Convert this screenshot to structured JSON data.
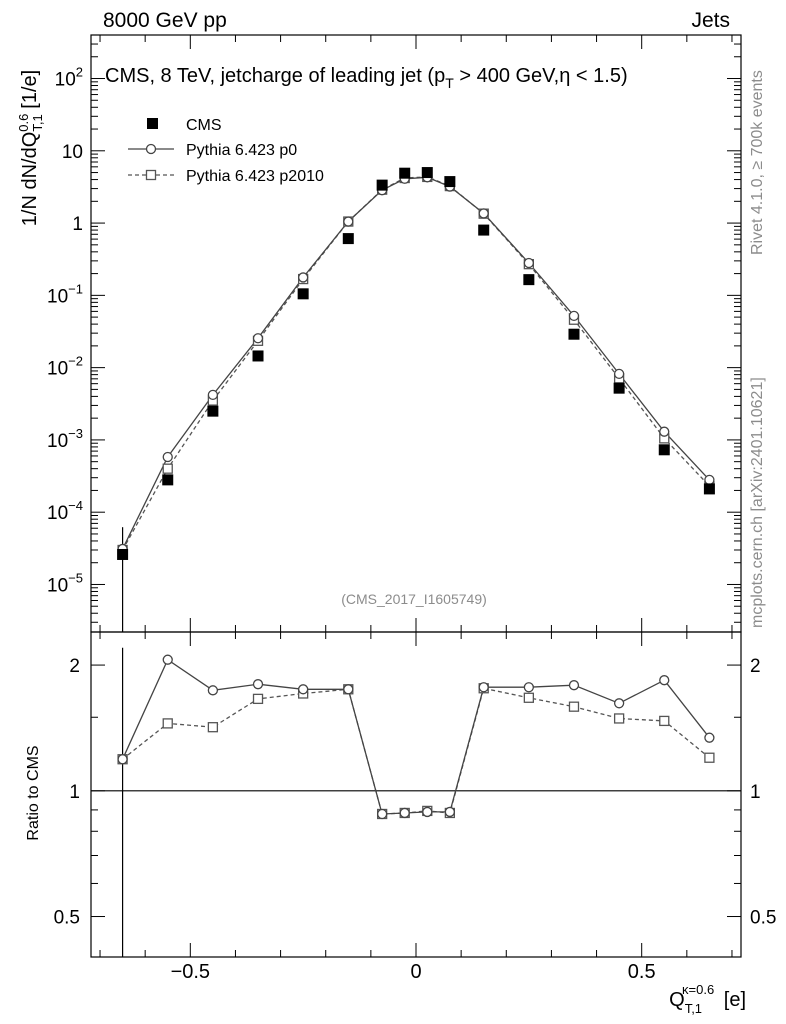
{
  "header": {
    "energy_label": "8000 GeV pp",
    "process_label": "Jets",
    "title": "CMS, 8 TeV, jetcharge of leading jet (p_T > 400 GeV,η < 1.5)",
    "analysis_id": "(CMS_2017_I1605749)",
    "side_label_top": "Rivet 4.1.0, ≥ 700k events",
    "side_label_bottom": "mcplots.cern.ch [arXiv:2401.10621]"
  },
  "axes": {
    "top_ylabel": "1/N dN/dQ^{0.6}_{T,1} [1/e]",
    "bottom_ylabel": "Ratio to CMS",
    "xlabel": "Q_{T,1}^{κ=0.6} [e]"
  },
  "chart_data": [
    {
      "type": "scatter",
      "panel": "main",
      "yscale": "log",
      "xlim": [
        -0.72,
        0.72
      ],
      "ylim": [
        2.2e-06,
        400
      ],
      "x": [
        -0.65,
        -0.55,
        -0.45,
        -0.35,
        -0.25,
        -0.15,
        -0.075,
        -0.025,
        0.025,
        0.075,
        0.15,
        0.25,
        0.35,
        0.45,
        0.55,
        0.65
      ],
      "xtick_labels": [
        "−0.5",
        "0",
        "0.5"
      ],
      "ytick_labels": [
        "10^{-5}",
        "10^{-4}",
        "10^{-3}",
        "10^{-2}",
        "10^{-1}",
        "1",
        "10",
        "10^{2}"
      ],
      "legend_position": "top-left",
      "series": [
        {
          "name": "CMS",
          "style": "filled-square",
          "color": "#000000",
          "values": [
            2.6e-05,
            0.00028,
            0.0025,
            0.0145,
            0.105,
            0.61,
            3.35,
            4.9,
            5.0,
            3.75,
            0.8,
            0.165,
            0.029,
            0.0052,
            0.00073,
            0.00021
          ]
        },
        {
          "name": "Pythia 6.423 p0",
          "style": "solid-line-open-circle",
          "color": "#444444",
          "values": [
            3.1e-05,
            0.00058,
            0.0042,
            0.0255,
            0.177,
            1.05,
            2.85,
            4.1,
            4.3,
            3.2,
            1.36,
            0.28,
            0.052,
            0.0082,
            0.0013,
            0.00028
          ]
        },
        {
          "name": "Pythia 6.423 p2010",
          "style": "dashed-line-open-square",
          "color": "#555555",
          "values": [
            3e-05,
            0.0004,
            0.0035,
            0.0235,
            0.168,
            1.05,
            2.9,
            4.2,
            4.35,
            3.25,
            1.35,
            0.27,
            0.046,
            0.0071,
            0.00105,
            0.00023
          ]
        }
      ]
    },
    {
      "type": "scatter",
      "panel": "ratio",
      "yscale": "log",
      "xlim": [
        -0.72,
        0.72
      ],
      "ylim": [
        0.4,
        2.4
      ],
      "x": [
        -0.65,
        -0.55,
        -0.45,
        -0.35,
        -0.25,
        -0.15,
        -0.075,
        -0.025,
        0.025,
        0.075,
        0.15,
        0.25,
        0.35,
        0.45,
        0.55,
        0.65
      ],
      "ytick_labels": [
        "0.5",
        "1",
        "2"
      ],
      "reference_line": 1,
      "series": [
        {
          "name": "Pythia 6.423 p0",
          "style": "solid-line-open-circle",
          "values": [
            1.19,
            2.06,
            1.74,
            1.8,
            1.75,
            1.75,
            0.88,
            0.885,
            0.89,
            0.89,
            1.77,
            1.77,
            1.79,
            1.62,
            1.84,
            1.34
          ]
        },
        {
          "name": "Pythia 6.423 p2010",
          "style": "dashed-line-open-square",
          "values": [
            1.19,
            1.45,
            1.42,
            1.66,
            1.71,
            1.75,
            0.88,
            0.885,
            0.895,
            0.885,
            1.76,
            1.67,
            1.59,
            1.49,
            1.47,
            1.2
          ]
        }
      ]
    }
  ]
}
